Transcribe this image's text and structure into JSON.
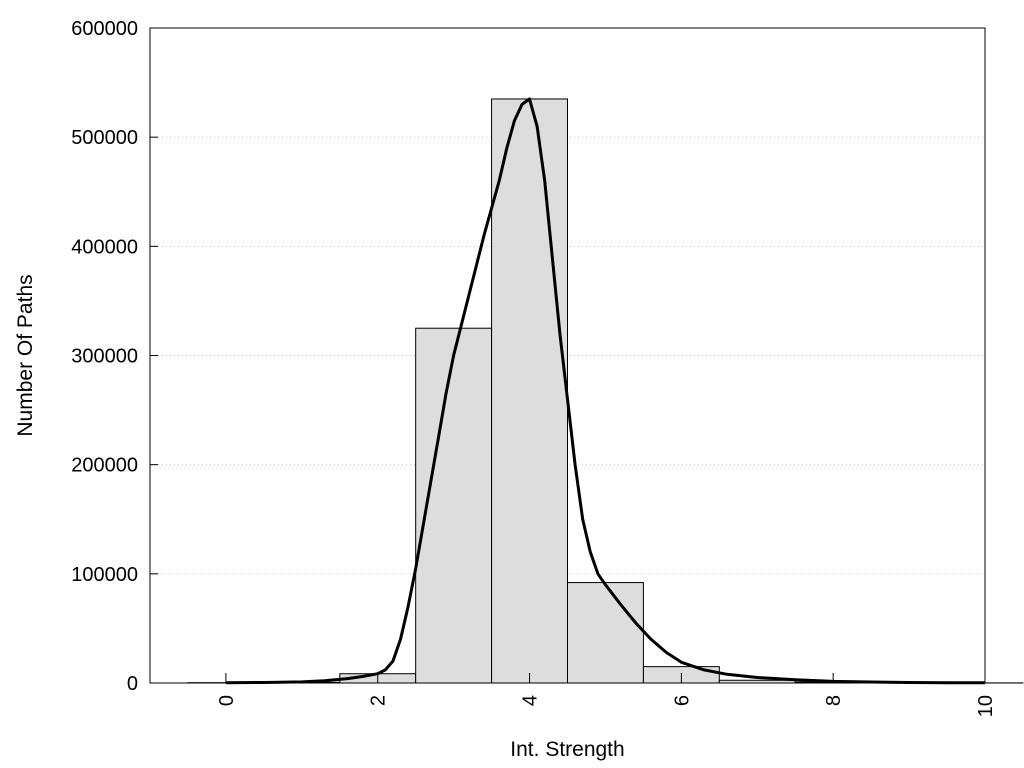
{
  "chart_data": {
    "type": "bar",
    "title": "",
    "xlabel": "Int. Strength",
    "ylabel": "Number Of Paths",
    "xlim": [
      -1,
      10
    ],
    "ylim": [
      0,
      600000
    ],
    "x_ticks": [
      0,
      2,
      4,
      6,
      8,
      10
    ],
    "y_ticks": [
      0,
      100000,
      200000,
      300000,
      400000,
      500000,
      600000
    ],
    "grid": "horizontal dotted",
    "bar_width": 1,
    "series": [
      {
        "kind": "histogram",
        "x": [
          0,
          1,
          2,
          3,
          4,
          5,
          6,
          7,
          8,
          9,
          10
        ],
        "values": [
          300,
          600,
          8500,
          325000,
          535000,
          92000,
          15000,
          2500,
          800,
          300,
          100
        ],
        "color": "#dddddd",
        "edge_color": "#000000"
      },
      {
        "kind": "line",
        "x": [
          0,
          0.5,
          1.0,
          1.3,
          1.6,
          1.8,
          2.0,
          2.1,
          2.2,
          2.3,
          2.4,
          2.5,
          2.6,
          2.7,
          2.8,
          2.9,
          3.0,
          3.2,
          3.4,
          3.6,
          3.7,
          3.8,
          3.9,
          4.0,
          4.1,
          4.2,
          4.3,
          4.4,
          4.5,
          4.6,
          4.7,
          4.8,
          4.9,
          5.0,
          5.2,
          5.4,
          5.6,
          5.8,
          6.0,
          6.3,
          6.6,
          7.0,
          7.5,
          8.0,
          8.5,
          9.0,
          9.5,
          10.0
        ],
        "values": [
          300,
          500,
          1000,
          2000,
          4000,
          6000,
          8500,
          12000,
          20000,
          40000,
          70000,
          105000,
          145000,
          185000,
          225000,
          265000,
          300000,
          355000,
          410000,
          460000,
          490000,
          515000,
          530000,
          535000,
          510000,
          460000,
          390000,
          320000,
          260000,
          200000,
          150000,
          120000,
          100000,
          90000,
          72000,
          55000,
          40000,
          28000,
          19000,
          12000,
          8000,
          5000,
          3000,
          1500,
          900,
          500,
          300,
          150
        ],
        "color": "#000000"
      }
    ]
  }
}
